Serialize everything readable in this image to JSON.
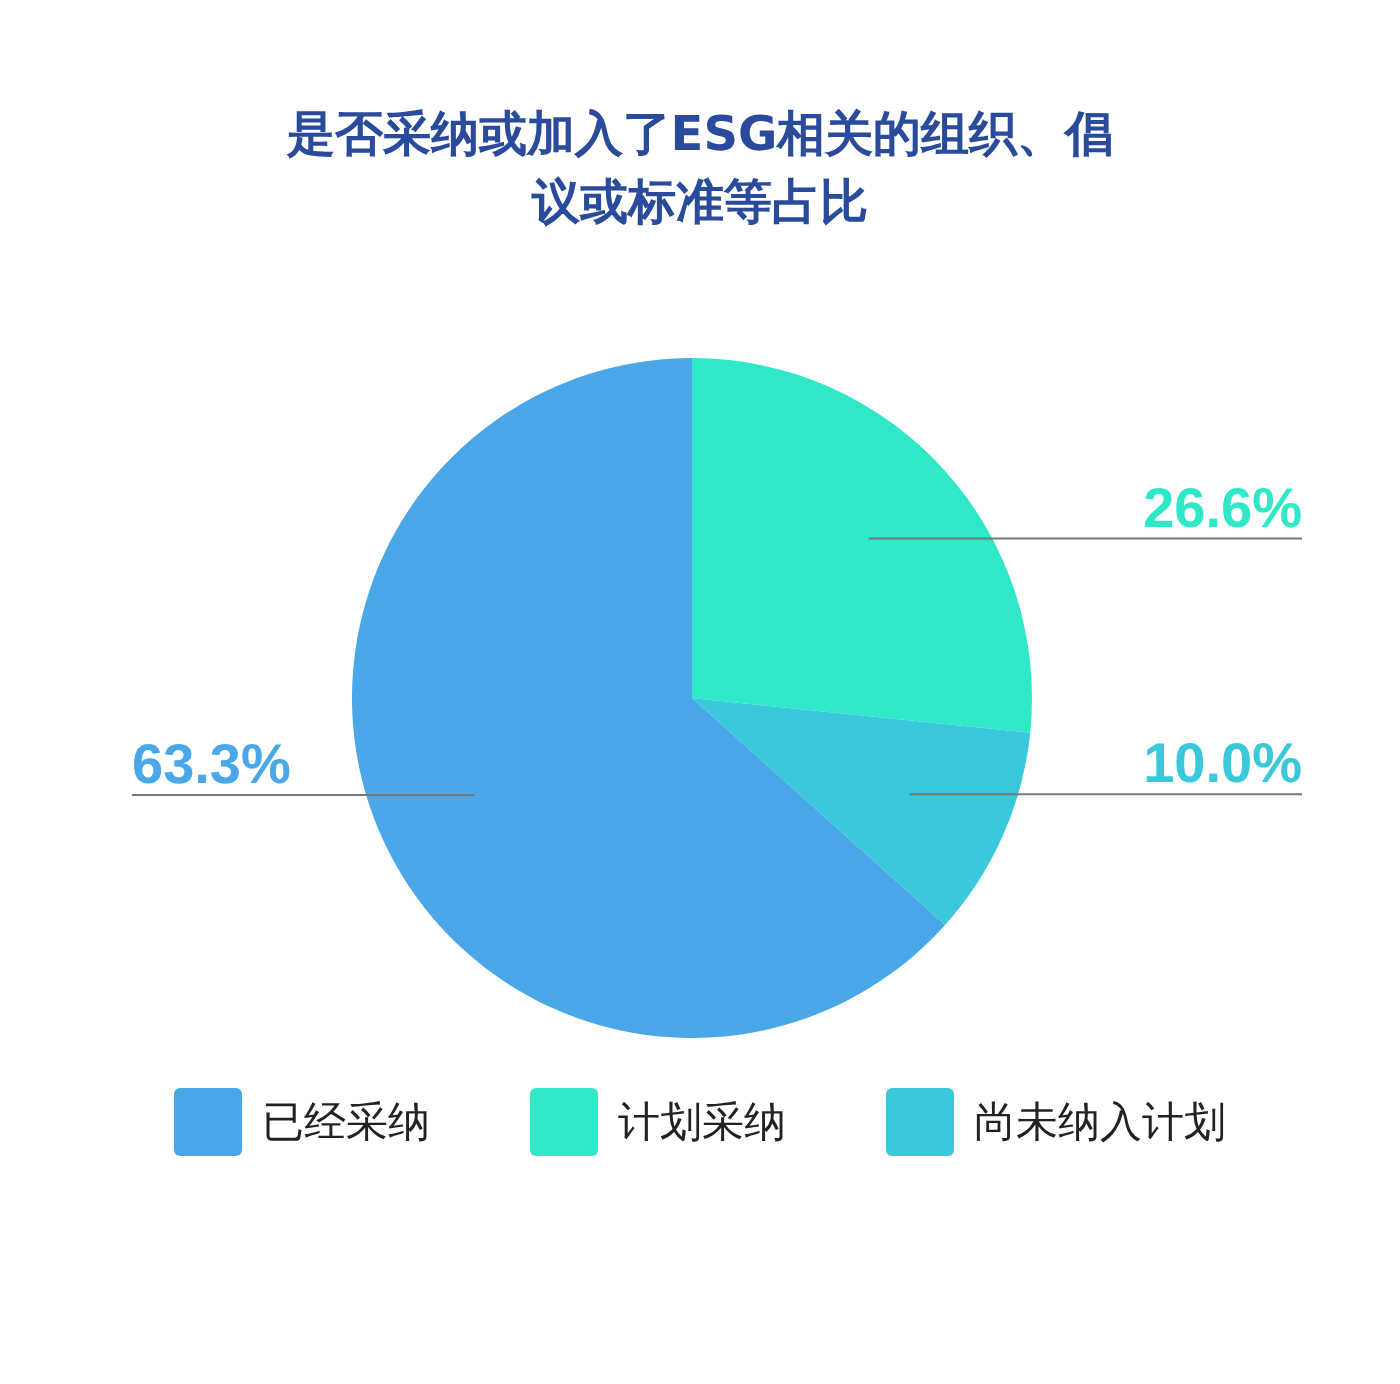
{
  "chart_data": {
    "type": "pie",
    "title": "是否采纳或加入了ESG相关的组织、倡议或标准等占比",
    "categories": [
      "计划采纳",
      "尚未纳入计划",
      "已经采纳"
    ],
    "values": [
      26.6,
      10.0,
      63.3
    ],
    "colors": [
      "#2ee8c8",
      "#3ac8dc",
      "#4aa8e8"
    ],
    "value_labels": [
      "26.6%",
      "10.0%",
      "63.3%"
    ],
    "legend": "bottom"
  }
}
